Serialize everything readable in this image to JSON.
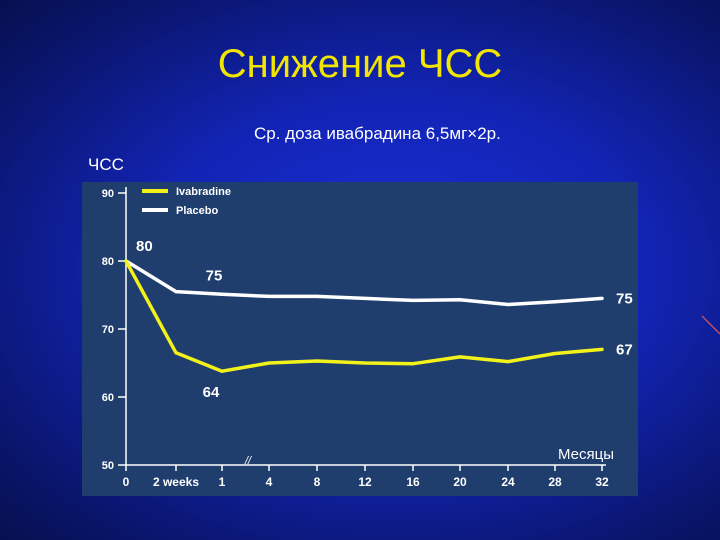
{
  "slide": {
    "title": "Снижение ЧСС",
    "subtitle": "Ср. доза ивабрадина 6,5мг×2р.",
    "y_axis_title": "ЧСС",
    "x_axis_note": "Месяцы"
  },
  "colors": {
    "ivabradine": "#f2f21a",
    "placebo": "#ffffff",
    "title": "#f2e600",
    "plot_background": "#1f3e6e"
  },
  "chart_data": {
    "type": "line",
    "x_tick_labels": [
      "0",
      "2 weeks",
      "1",
      "4",
      "8",
      "12",
      "16",
      "20",
      "24",
      "28",
      "32"
    ],
    "y_ticks": [
      50,
      60,
      70,
      80,
      90
    ],
    "ylim": [
      50,
      90
    ],
    "axis_break_marker": "//",
    "grid": false,
    "legend_position": "top-left",
    "series": [
      {
        "name": "Ivabradine",
        "color": "#f2f21a",
        "values": [
          80,
          66.5,
          63.8,
          65,
          65.3,
          65,
          64.9,
          65.9,
          65.2,
          66.4,
          67
        ],
        "labels": [
          {
            "index": 2,
            "text": "64"
          },
          {
            "index": 10,
            "text": "67"
          }
        ]
      },
      {
        "name": "Placebo",
        "color": "#ffffff",
        "values": [
          80,
          75.5,
          75.1,
          74.8,
          74.8,
          74.5,
          74.2,
          74.3,
          73.6,
          74,
          74.5
        ],
        "labels": [
          {
            "index": 0,
            "text": "80"
          },
          {
            "index": 2,
            "text": "75"
          },
          {
            "index": 10,
            "text": "75"
          }
        ]
      }
    ]
  }
}
